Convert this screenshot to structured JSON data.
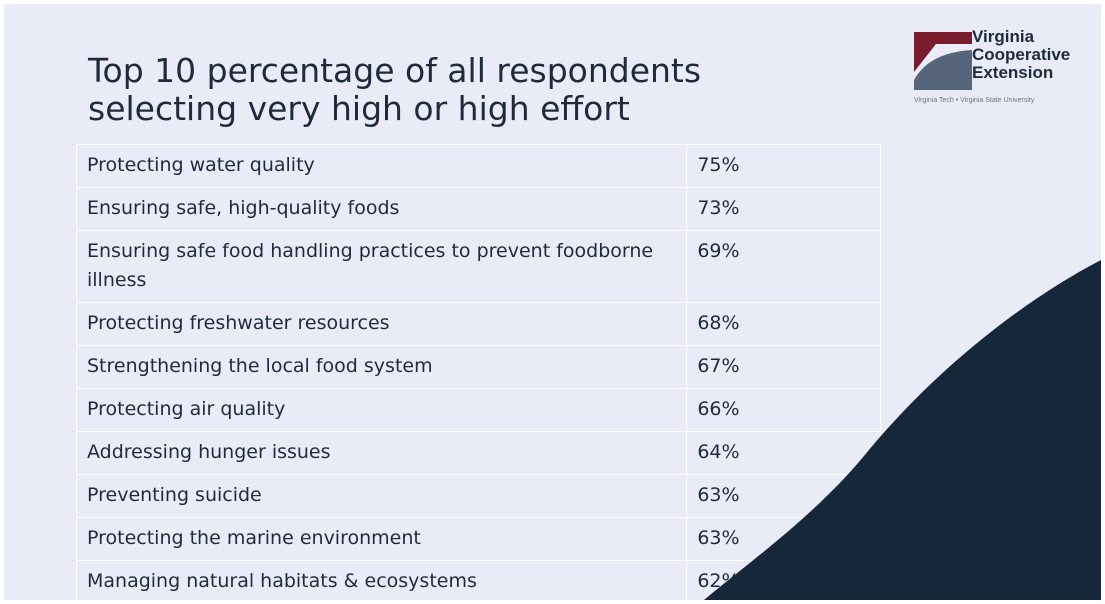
{
  "title": {
    "line1": "Top 10 percentage of all respondents",
    "line2": "selecting very high or high effort"
  },
  "logo": {
    "line1": "Virginia",
    "line2": "Cooperative",
    "line3": "Extension",
    "subtitle": "Virginia Tech  •  Virginia State University",
    "colors": {
      "maroon": "#7b1c2e",
      "slate": "#56657a"
    }
  },
  "colors": {
    "background": "#e9ecf6",
    "wave": "#16273a",
    "text": "#1f2a3c"
  },
  "rows": [
    {
      "label": "Protecting water quality",
      "value": "75%"
    },
    {
      "label": "Ensuring safe, high-quality foods",
      "value": "73%"
    },
    {
      "label": "Ensuring safe food handling practices to prevent foodborne illness",
      "value": "69%"
    },
    {
      "label": "Protecting freshwater resources",
      "value": "68%"
    },
    {
      "label": "Strengthening the local food system",
      "value": "67%"
    },
    {
      "label": "Protecting air quality",
      "value": "66%"
    },
    {
      "label": "Addressing hunger issues",
      "value": "64%"
    },
    {
      "label": "Preventing suicide",
      "value": "63%"
    },
    {
      "label": "Protecting the marine environment",
      "value": "63%"
    },
    {
      "label": "Managing natural habitats & ecosystems",
      "value": "62%"
    }
  ]
}
